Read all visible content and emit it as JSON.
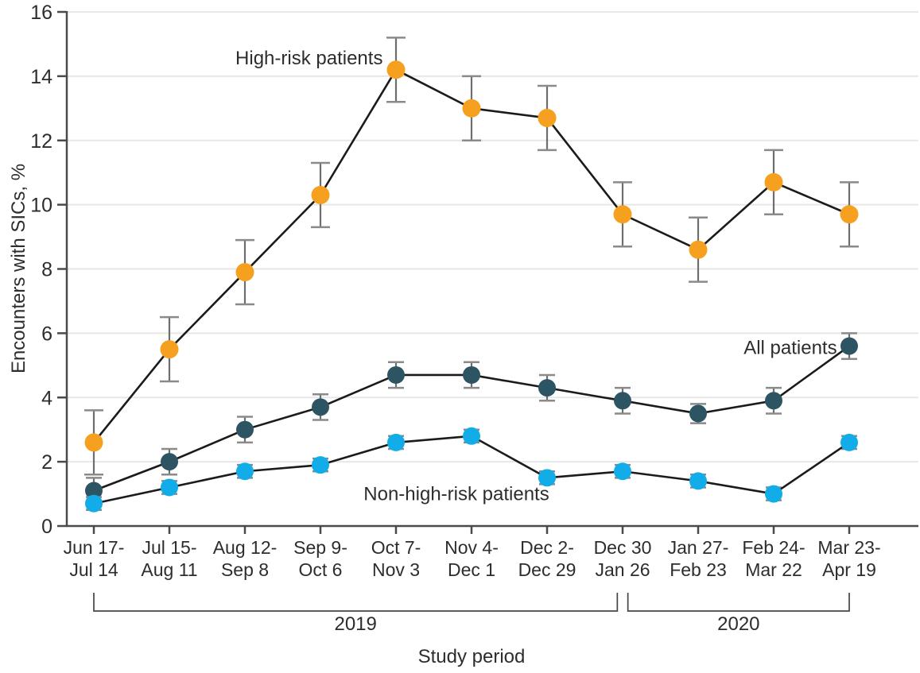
{
  "chart_data": {
    "type": "line",
    "title": "",
    "ylabel": "Encounters with SICs, %",
    "xlabel": "Study period",
    "ylim": [
      0,
      16
    ],
    "yticks": [
      0,
      2,
      4,
      6,
      8,
      10,
      12,
      14,
      16
    ],
    "grid": true,
    "legend_position": "inline-annotations",
    "categories": [
      [
        "Jun 17-",
        "Jul 14"
      ],
      [
        "Jul 15-",
        "Aug 11"
      ],
      [
        "Aug 12-",
        "Sep 8"
      ],
      [
        "Sep 9-",
        "Oct 6"
      ],
      [
        "Oct 7-",
        "Nov 3"
      ],
      [
        "Nov 4-",
        "Dec 1"
      ],
      [
        "Dec 2-",
        "Dec 29"
      ],
      [
        "Dec 30",
        "Jan 26"
      ],
      [
        "Jan 27-",
        "Feb 23"
      ],
      [
        "Feb 24-",
        "Mar 22"
      ],
      [
        "Mar 23-",
        "Apr 19"
      ]
    ],
    "series": [
      {
        "name": "High-risk patients",
        "color": "#F5A01E",
        "marker_radius": 11.5,
        "cap_halfwidth": 12,
        "values": [
          2.6,
          5.5,
          7.9,
          10.3,
          14.2,
          13.0,
          12.7,
          9.7,
          8.6,
          10.7,
          9.7
        ],
        "ci_low": [
          1.6,
          4.5,
          6.9,
          9.3,
          13.2,
          12.0,
          11.7,
          8.7,
          7.6,
          9.7,
          8.7
        ],
        "ci_high": [
          3.6,
          6.5,
          8.9,
          11.3,
          15.2,
          14.0,
          13.7,
          10.7,
          9.6,
          11.7,
          10.7
        ]
      },
      {
        "name": "All patients",
        "color": "#2D5463",
        "marker_radius": 11,
        "cap_halfwidth": 10,
        "values": [
          1.1,
          2.0,
          3.0,
          3.7,
          4.7,
          4.7,
          4.3,
          3.9,
          3.5,
          3.9,
          5.6
        ],
        "ci_low": [
          0.8,
          1.6,
          2.6,
          3.3,
          4.3,
          4.3,
          3.9,
          3.5,
          3.2,
          3.5,
          5.2
        ],
        "ci_high": [
          1.5,
          2.4,
          3.4,
          4.1,
          5.1,
          5.1,
          4.7,
          4.3,
          3.8,
          4.3,
          6.0
        ]
      },
      {
        "name": "Non-high-risk patients",
        "color": "#12ADE8",
        "marker_radius": 11,
        "cap_halfwidth": 10,
        "values": [
          0.7,
          1.2,
          1.7,
          1.9,
          2.6,
          2.8,
          1.5,
          1.7,
          1.4,
          1.0,
          2.6
        ],
        "ci_low": [
          0.5,
          1.0,
          1.5,
          1.7,
          2.4,
          2.6,
          1.3,
          1.5,
          1.2,
          0.8,
          2.4
        ],
        "ci_high": [
          0.9,
          1.4,
          1.9,
          2.1,
          2.8,
          3.0,
          1.7,
          1.9,
          1.6,
          1.2,
          2.8
        ]
      }
    ],
    "annotations": [
      {
        "text": "High-risk patients",
        "cat": 2.85,
        "value": 14.57
      },
      {
        "text": "All patients",
        "cat": 9.22,
        "value": 5.55
      },
      {
        "text": "Non-high-risk patients",
        "cat": 4.8,
        "value": 1.0
      }
    ],
    "year_brackets": [
      {
        "label": "2019",
        "from_cat": 0.0,
        "to_cat": 6.93
      },
      {
        "label": "2020",
        "from_cat": 7.07,
        "to_cat": 10.0
      }
    ],
    "colors": {
      "line": "#1B1B1B",
      "error_stem": "#6E6E6E",
      "error_cap": "#8A8A8A",
      "grid": "#E7E7E7",
      "axis": "#4A4A4A",
      "bracket": "#454545",
      "text": "#2D2D2D"
    }
  }
}
